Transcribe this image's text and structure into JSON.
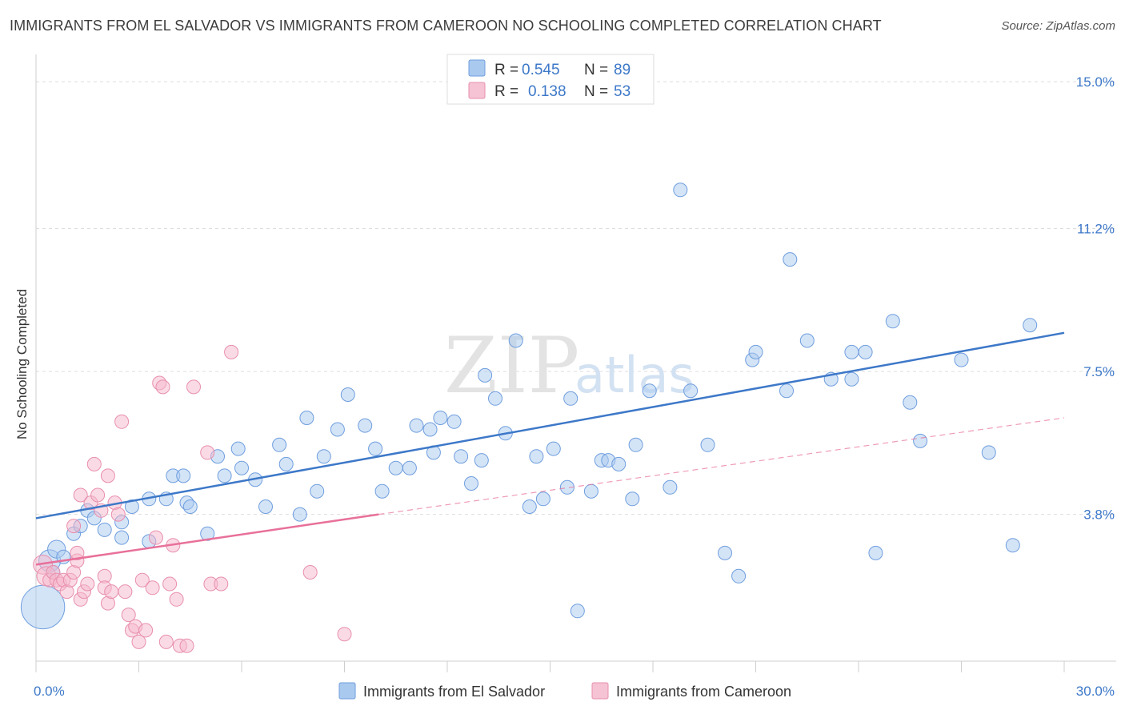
{
  "title": "IMMIGRANTS FROM EL SALVADOR VS IMMIGRANTS FROM CAMEROON NO SCHOOLING COMPLETED CORRELATION CHART",
  "source": "Source: ZipAtlas.com",
  "watermark": {
    "part1": "ZIP",
    "part2": "atlas"
  },
  "colors": {
    "blue": "#3d78c8",
    "blue_fill": "#a9c9ef",
    "pink": "#e8709a",
    "pink_fill": "#f5b8cc",
    "grid": "#dddddd"
  },
  "chart_data": {
    "type": "scatter",
    "title": "IMMIGRANTS FROM EL SALVADOR VS IMMIGRANTS FROM CAMEROON NO SCHOOLING COMPLETED CORRELATION CHART",
    "xlabel": "",
    "ylabel": "No Schooling Completed",
    "xlim": [
      0,
      30
    ],
    "ylim": [
      0,
      15.5
    ],
    "x_tick_labels": [
      {
        "value": 0,
        "label": "0.0%"
      },
      {
        "value": 30,
        "label": "30.0%"
      }
    ],
    "y_tick_labels": [
      {
        "value": 3.8,
        "label": "3.8%"
      },
      {
        "value": 7.5,
        "label": "7.5%"
      },
      {
        "value": 11.2,
        "label": "11.2%"
      },
      {
        "value": 15.0,
        "label": "15.0%"
      }
    ],
    "grid": true,
    "legend": [
      {
        "r_label": "R =",
        "r_value": "0.545",
        "n_label": "N =",
        "n_value": "89"
      },
      {
        "r_label": "R =",
        "r_value": "0.138",
        "n_label": "N =",
        "n_value": "53"
      }
    ],
    "series": [
      {
        "name": "Immigrants from El Salvador",
        "color": "#3d78c8",
        "trend": {
          "x": [
            0,
            30
          ],
          "y": [
            3.7,
            8.5
          ],
          "style": "solid"
        },
        "points": [
          [
            0.2,
            1.4,
            3.2
          ],
          [
            0.4,
            2.6,
            1.6
          ],
          [
            0.6,
            2.9,
            1.3
          ],
          [
            0.8,
            2.7,
            1.0
          ],
          [
            0.5,
            2.3,
            1.0
          ],
          [
            1.1,
            3.3,
            1.0
          ],
          [
            1.3,
            3.5,
            1.0
          ],
          [
            1.5,
            3.9,
            1.0
          ],
          [
            1.7,
            3.7,
            1.0
          ],
          [
            2.0,
            3.4,
            1.0
          ],
          [
            2.5,
            3.2,
            1.0
          ],
          [
            2.5,
            3.6,
            1.0
          ],
          [
            2.8,
            4.0,
            1.0
          ],
          [
            3.3,
            3.1,
            1.0
          ],
          [
            3.3,
            4.2,
            1.0
          ],
          [
            3.8,
            4.2,
            1.0
          ],
          [
            4.0,
            4.8,
            1.0
          ],
          [
            4.3,
            4.8,
            1.0
          ],
          [
            4.4,
            4.1,
            1.0
          ],
          [
            4.5,
            4.0,
            1.0
          ],
          [
            5.0,
            3.3,
            1.0
          ],
          [
            5.3,
            5.3,
            1.0
          ],
          [
            5.5,
            4.8,
            1.0
          ],
          [
            5.9,
            5.5,
            1.0
          ],
          [
            6.0,
            5.0,
            1.0
          ],
          [
            6.4,
            4.7,
            1.0
          ],
          [
            6.7,
            4.0,
            1.0
          ],
          [
            7.1,
            5.6,
            1.0
          ],
          [
            7.3,
            5.1,
            1.0
          ],
          [
            7.7,
            3.8,
            1.0
          ],
          [
            7.9,
            6.3,
            1.0
          ],
          [
            8.2,
            4.4,
            1.0
          ],
          [
            8.4,
            5.3,
            1.0
          ],
          [
            8.8,
            6.0,
            1.0
          ],
          [
            9.1,
            6.9,
            1.0
          ],
          [
            9.6,
            6.1,
            1.0
          ],
          [
            9.9,
            5.5,
            1.0
          ],
          [
            10.1,
            4.4,
            1.0
          ],
          [
            10.5,
            5.0,
            1.0
          ],
          [
            10.9,
            5.0,
            1.0
          ],
          [
            11.1,
            6.1,
            1.0
          ],
          [
            11.5,
            6.0,
            1.0
          ],
          [
            11.6,
            5.4,
            1.0
          ],
          [
            11.8,
            6.3,
            1.0
          ],
          [
            12.2,
            6.2,
            1.0
          ],
          [
            12.4,
            5.3,
            1.0
          ],
          [
            12.7,
            4.6,
            1.0
          ],
          [
            13.0,
            5.2,
            1.0
          ],
          [
            13.1,
            7.4,
            1.0
          ],
          [
            13.4,
            6.8,
            1.0
          ],
          [
            13.7,
            5.9,
            1.0
          ],
          [
            14.0,
            8.3,
            1.0
          ],
          [
            14.4,
            4.0,
            1.0
          ],
          [
            14.6,
            5.3,
            1.0
          ],
          [
            14.8,
            4.2,
            1.0
          ],
          [
            15.1,
            5.5,
            1.0
          ],
          [
            15.5,
            4.5,
            1.0
          ],
          [
            15.6,
            6.8,
            1.0
          ],
          [
            15.8,
            1.3,
            1.0
          ],
          [
            16.2,
            4.4,
            1.0
          ],
          [
            16.5,
            5.2,
            1.0
          ],
          [
            16.7,
            5.2,
            1.0
          ],
          [
            17.0,
            5.1,
            1.0
          ],
          [
            17.4,
            4.2,
            1.0
          ],
          [
            17.5,
            5.6,
            1.0
          ],
          [
            17.9,
            7.0,
            1.0
          ],
          [
            18.5,
            4.5,
            1.0
          ],
          [
            18.8,
            12.2,
            1.0
          ],
          [
            19.1,
            7.0,
            1.0
          ],
          [
            19.6,
            5.6,
            1.0
          ],
          [
            20.1,
            2.8,
            1.0
          ],
          [
            20.9,
            7.8,
            1.0
          ],
          [
            21.0,
            8.0,
            1.0
          ],
          [
            20.5,
            2.2,
            1.0
          ],
          [
            21.9,
            7.0,
            1.0
          ],
          [
            22.0,
            10.4,
            1.0
          ],
          [
            22.5,
            8.3,
            1.0
          ],
          [
            23.2,
            7.3,
            1.0
          ],
          [
            23.8,
            7.3,
            1.0
          ],
          [
            23.8,
            8.0,
            1.0
          ],
          [
            24.2,
            8.0,
            1.0
          ],
          [
            24.5,
            2.8,
            1.0
          ],
          [
            25.0,
            8.8,
            1.0
          ],
          [
            25.5,
            6.7,
            1.0
          ],
          [
            25.8,
            5.7,
            1.0
          ],
          [
            27.0,
            7.8,
            1.0
          ],
          [
            27.8,
            5.4,
            1.0
          ],
          [
            28.5,
            3.0,
            1.0
          ],
          [
            29.0,
            8.7,
            1.0
          ]
        ]
      },
      {
        "name": "Immigrants from Cameroon",
        "color": "#e8709a",
        "trend": {
          "x": [
            0,
            10
          ],
          "y": [
            2.5,
            3.8
          ],
          "style": "solid"
        },
        "trend_extension": {
          "x": [
            10,
            30
          ],
          "y": [
            3.8,
            6.3
          ],
          "style": "dashed"
        },
        "points": [
          [
            0.2,
            2.5,
            1.4
          ],
          [
            0.3,
            2.2,
            1.4
          ],
          [
            0.4,
            2.1,
            1.0
          ],
          [
            0.5,
            2.3,
            1.0
          ],
          [
            0.6,
            2.1,
            1.0
          ],
          [
            0.7,
            2.0,
            1.0
          ],
          [
            0.8,
            2.1,
            1.0
          ],
          [
            0.9,
            1.8,
            1.0
          ],
          [
            1.0,
            2.1,
            1.0
          ],
          [
            1.1,
            2.3,
            1.0
          ],
          [
            1.1,
            3.5,
            1.0
          ],
          [
            1.2,
            2.6,
            1.0
          ],
          [
            1.2,
            2.8,
            1.0
          ],
          [
            1.3,
            4.3,
            1.0
          ],
          [
            1.3,
            1.6,
            1.0
          ],
          [
            1.4,
            1.8,
            1.0
          ],
          [
            1.5,
            2.0,
            1.0
          ],
          [
            1.6,
            4.1,
            1.0
          ],
          [
            1.7,
            5.1,
            1.0
          ],
          [
            1.8,
            4.3,
            1.0
          ],
          [
            1.9,
            3.9,
            1.0
          ],
          [
            2.0,
            2.2,
            1.0
          ],
          [
            2.0,
            1.9,
            1.0
          ],
          [
            2.1,
            4.8,
            1.0
          ],
          [
            2.1,
            1.5,
            1.0
          ],
          [
            2.2,
            1.8,
            1.0
          ],
          [
            2.3,
            4.1,
            1.0
          ],
          [
            2.4,
            3.8,
            1.0
          ],
          [
            2.5,
            6.2,
            1.0
          ],
          [
            2.6,
            1.8,
            1.0
          ],
          [
            2.7,
            1.2,
            1.0
          ],
          [
            2.8,
            0.8,
            1.0
          ],
          [
            2.9,
            0.9,
            1.0
          ],
          [
            3.0,
            0.5,
            1.0
          ],
          [
            3.1,
            2.1,
            1.0
          ],
          [
            3.2,
            0.8,
            1.0
          ],
          [
            3.4,
            1.9,
            1.0
          ],
          [
            3.5,
            3.2,
            1.0
          ],
          [
            3.6,
            7.2,
            1.0
          ],
          [
            3.7,
            7.1,
            1.0
          ],
          [
            3.8,
            0.5,
            1.0
          ],
          [
            3.9,
            2.0,
            1.0
          ],
          [
            4.0,
            3.0,
            1.0
          ],
          [
            4.1,
            1.6,
            1.0
          ],
          [
            4.2,
            0.4,
            1.0
          ],
          [
            4.4,
            0.4,
            1.0
          ],
          [
            4.6,
            7.1,
            1.0
          ],
          [
            5.0,
            5.4,
            1.0
          ],
          [
            5.1,
            2.0,
            1.0
          ],
          [
            5.4,
            2.0,
            1.0
          ],
          [
            5.7,
            8.0,
            1.0
          ],
          [
            8.0,
            2.3,
            1.0
          ],
          [
            9.0,
            0.7,
            1.0
          ]
        ]
      }
    ]
  },
  "bottom_legend": [
    {
      "label": "Immigrants from El Salvador"
    },
    {
      "label": "Immigrants from Cameroon"
    }
  ]
}
